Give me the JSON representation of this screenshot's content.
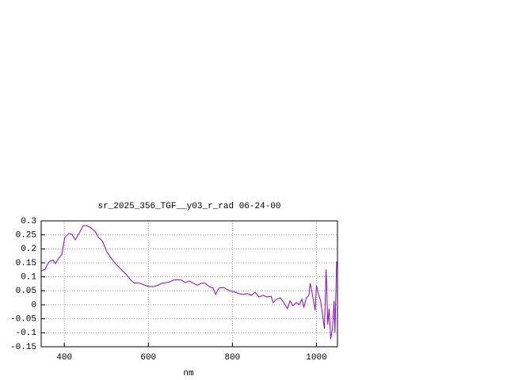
{
  "chart_data": {
    "type": "line",
    "title": "sr_2025_356_TGF__y03_r_rad 06-24-00",
    "xlabel": "nm",
    "xlim": [
      345,
      1050
    ],
    "ylim": [
      -0.15,
      0.3
    ],
    "xticks": [
      400,
      600,
      800,
      1000
    ],
    "yticks": [
      0.3,
      0.25,
      0.2,
      0.15,
      0.1,
      0.05,
      0,
      -0.05,
      -0.1,
      -0.15
    ],
    "grid": true,
    "series": [
      {
        "color": "#9400d3",
        "x": [
          345,
          354,
          364,
          373,
          379,
          386,
          394,
          401,
          411,
          418,
          426,
          435,
          445,
          454,
          463,
          473,
          482,
          491,
          501,
          510,
          520,
          529,
          538,
          548,
          557,
          567,
          576,
          585,
          595,
          604,
          613,
          623,
          632,
          642,
          651,
          660,
          670,
          679,
          688,
          698,
          707,
          717,
          726,
          735,
          745,
          754,
          760,
          768,
          779,
          788,
          798,
          807,
          816,
          826,
          835,
          845,
          854,
          863,
          873,
          882,
          892,
          897,
          905,
          914,
          923,
          931,
          937,
          944,
          952,
          959,
          965,
          970,
          976,
          982,
          985,
          989,
          993,
          997,
          1000,
          1004,
          1010,
          1015,
          1019,
          1023,
          1027,
          1030,
          1034,
          1038,
          1042,
          1044,
          1048
        ],
        "values": [
          0.12,
          0.127,
          0.155,
          0.16,
          0.147,
          0.165,
          0.18,
          0.24,
          0.255,
          0.252,
          0.232,
          0.255,
          0.283,
          0.283,
          0.275,
          0.263,
          0.24,
          0.227,
          0.19,
          0.17,
          0.15,
          0.136,
          0.122,
          0.108,
          0.09,
          0.077,
          0.079,
          0.074,
          0.068,
          0.065,
          0.065,
          0.07,
          0.077,
          0.079,
          0.082,
          0.088,
          0.09,
          0.088,
          0.079,
          0.085,
          0.077,
          0.07,
          0.077,
          0.077,
          0.065,
          0.06,
          0.037,
          0.06,
          0.062,
          0.054,
          0.048,
          0.045,
          0.04,
          0.037,
          0.04,
          0.034,
          0.045,
          0.028,
          0.034,
          0.028,
          0.031,
          0.008,
          0.02,
          0.025,
          0.006,
          -0.014,
          0.014,
          -0.003,
          0.008,
          0,
          0.02,
          -0.008,
          0.025,
          0.034,
          0.077,
          0.048,
          0.014,
          -0.02,
          0.07,
          0.042,
          0.014,
          -0.042,
          -0.085,
          0.127,
          -0.071,
          -0.014,
          -0.122,
          -0.085,
          0.014,
          -0.1,
          0.155
        ]
      }
    ]
  }
}
